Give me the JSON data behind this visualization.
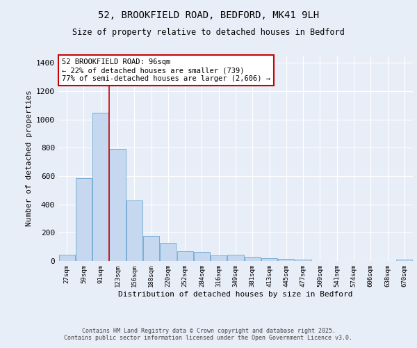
{
  "title_line1": "52, BROOKFIELD ROAD, BEDFORD, MK41 9LH",
  "title_line2": "Size of property relative to detached houses in Bedford",
  "xlabel": "Distribution of detached houses by size in Bedford",
  "ylabel": "Number of detached properties",
  "categories": [
    "27sqm",
    "59sqm",
    "91sqm",
    "123sqm",
    "156sqm",
    "188sqm",
    "220sqm",
    "252sqm",
    "284sqm",
    "316sqm",
    "349sqm",
    "381sqm",
    "413sqm",
    "445sqm",
    "477sqm",
    "509sqm",
    "541sqm",
    "574sqm",
    "606sqm",
    "638sqm",
    "670sqm"
  ],
  "values": [
    45,
    585,
    1048,
    793,
    430,
    178,
    128,
    68,
    65,
    38,
    42,
    28,
    22,
    15,
    9,
    0,
    0,
    0,
    0,
    0,
    10
  ],
  "bar_color": "#c5d8f0",
  "bar_edge_color": "#7aaed4",
  "highlight_color": "#cc0000",
  "annotation_text": "52 BROOKFIELD ROAD: 96sqm\n← 22% of detached houses are smaller (739)\n77% of semi-detached houses are larger (2,606) →",
  "annotation_box_facecolor": "#ffffff",
  "annotation_box_edgecolor": "#cc0000",
  "ylim": [
    0,
    1450
  ],
  "yticks": [
    0,
    200,
    400,
    600,
    800,
    1000,
    1200,
    1400
  ],
  "background_color": "#e8eef8",
  "grid_color": "#ffffff",
  "footer_line1": "Contains HM Land Registry data © Crown copyright and database right 2025.",
  "footer_line2": "Contains public sector information licensed under the Open Government Licence v3.0."
}
